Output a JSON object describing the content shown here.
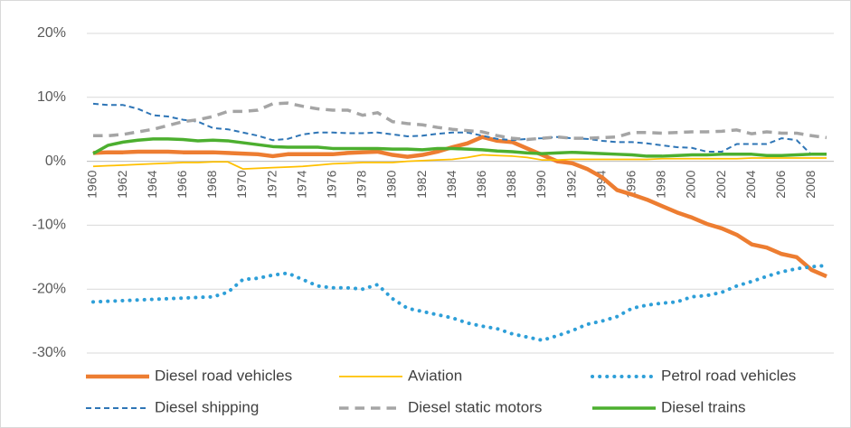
{
  "chart_data": {
    "type": "line",
    "categories": [
      "1960",
      null,
      "1962",
      null,
      "1964",
      null,
      "1966",
      null,
      "1968",
      null,
      "1970",
      null,
      "1972",
      null,
      "1974",
      null,
      "1976",
      null,
      "1978",
      null,
      "1980",
      null,
      "1982",
      null,
      "1984",
      null,
      "1986",
      null,
      "1988",
      null,
      "1990",
      null,
      "1992",
      null,
      "1994",
      null,
      "1996",
      null,
      "1998",
      null,
      "2000",
      null,
      "2002",
      null,
      "2004",
      null,
      "2006",
      null,
      "2008",
      null
    ],
    "ylim": [
      -30,
      20
    ],
    "yticks": [
      {
        "value": -30,
        "label": "-30%"
      },
      {
        "value": -20,
        "label": "-20%"
      },
      {
        "value": -10,
        "label": "-10%"
      },
      {
        "value": 0,
        "label": "0%"
      },
      {
        "value": 10,
        "label": "10%"
      },
      {
        "value": 20,
        "label": "20%"
      }
    ],
    "grid": true,
    "legend": "bottom",
    "series": [
      {
        "name": "Diesel road vehicles",
        "color": "#ed7d31",
        "dash": "solid",
        "line_width": 4.5,
        "values": [
          1.3,
          1.4,
          1.4,
          1.5,
          1.5,
          1.5,
          1.4,
          1.4,
          1.4,
          1.3,
          1.2,
          1.1,
          0.8,
          1.1,
          1.1,
          1.1,
          1.1,
          1.3,
          1.4,
          1.5,
          1.0,
          0.7,
          1.0,
          1.5,
          2.2,
          2.8,
          3.8,
          3.2,
          3.0,
          2.0,
          1.0,
          0,
          -0.3,
          -1.2,
          -2.5,
          -4.5,
          -5.2,
          -6,
          -7,
          -8,
          -8.8,
          -9.8,
          -10.5,
          -11.5,
          -13,
          -13.5,
          -14.5,
          -15,
          -17,
          -18
        ]
      },
      {
        "name": "Aviation",
        "color": "#ffc000",
        "dash": "solid",
        "line_width": 1.75,
        "values": [
          -0.8,
          -0.7,
          -0.6,
          -0.5,
          -0.4,
          -0.3,
          -0.2,
          -0.2,
          -0.1,
          -0.1,
          -1.2,
          -1.1,
          -1.0,
          -0.9,
          -0.8,
          -0.6,
          -0.4,
          -0.3,
          -0.2,
          -0.2,
          -0.2,
          0,
          0.1,
          0.2,
          0.3,
          0.6,
          1.0,
          0.9,
          0.8,
          0.6,
          0.2,
          0.2,
          0.3,
          0.3,
          0.3,
          0.3,
          0.3,
          0.3,
          0.4,
          0.4,
          0.4,
          0.4,
          0.4,
          0.4,
          0.5,
          0.5,
          0.5,
          0.5,
          0.5,
          0.5
        ]
      },
      {
        "name": "Petrol road vehicles",
        "color": "#2e9fd8",
        "dash": "dot",
        "line_width": 4,
        "values": [
          -22,
          -21.9,
          -21.8,
          -21.7,
          -21.6,
          -21.5,
          -21.4,
          -21.3,
          -21.2,
          -20.5,
          -18.5,
          -18.3,
          -17.8,
          -17.5,
          -18.5,
          -19.5,
          -19.8,
          -19.8,
          -20,
          -19.3,
          -21.5,
          -23,
          -23.5,
          -24,
          -24.5,
          -25.3,
          -25.8,
          -26.2,
          -27,
          -27.5,
          -28,
          -27.3,
          -26.5,
          -25.5,
          -25,
          -24.3,
          -23,
          -22.5,
          -22.2,
          -22,
          -21.2,
          -21,
          -20.5,
          -19.5,
          -18.8,
          -18,
          -17.3,
          -16.8,
          -16.5,
          -16.3
        ]
      },
      {
        "name": "Diesel shipping",
        "color": "#2e75b6",
        "dash": "dash",
        "line_width": 2,
        "values": [
          9,
          8.8,
          8.8,
          8.2,
          7.2,
          7,
          6.5,
          6.2,
          5.2,
          5,
          4.5,
          4,
          3.3,
          3.5,
          4.2,
          4.5,
          4.5,
          4.4,
          4.4,
          4.5,
          4.2,
          3.9,
          4,
          4.3,
          4.5,
          4.5,
          4,
          3.5,
          3.3,
          3.5,
          3.6,
          3.8,
          3.6,
          3.5,
          3.2,
          3,
          3,
          2.8,
          2.5,
          2.2,
          2.1,
          1.5,
          1.5,
          2.7,
          2.7,
          2.7,
          3.6,
          3.3,
          1,
          1
        ]
      },
      {
        "name": "Diesel static motors",
        "color": "#a5a5a5",
        "dash": "dash",
        "line_width": 3.5,
        "values": [
          4,
          4,
          4.2,
          4.6,
          5,
          5.6,
          6.2,
          6.5,
          7,
          7.8,
          7.8,
          8,
          9,
          9.1,
          8.6,
          8.2,
          8,
          8,
          7.2,
          7.6,
          6.2,
          5.9,
          5.7,
          5.3,
          5,
          4.8,
          4.6,
          4,
          3.6,
          3.4,
          3.6,
          3.8,
          3.6,
          3.6,
          3.7,
          3.8,
          4.5,
          4.5,
          4.4,
          4.5,
          4.6,
          4.6,
          4.7,
          4.9,
          4.3,
          4.6,
          4.4,
          4.4,
          4,
          3.7
        ]
      },
      {
        "name": "Diesel trains",
        "color": "#4caf2f",
        "dash": "solid",
        "line_width": 3.5,
        "values": [
          1.2,
          2.5,
          3,
          3.3,
          3.5,
          3.5,
          3.4,
          3.2,
          3.3,
          3.2,
          2.9,
          2.6,
          2.3,
          2.2,
          2.2,
          2.2,
          2,
          2,
          2,
          2,
          1.9,
          1.9,
          1.8,
          2,
          2,
          1.9,
          1.8,
          1.6,
          1.5,
          1.3,
          1.2,
          1.3,
          1.4,
          1.3,
          1.2,
          1.1,
          1,
          0.8,
          0.8,
          0.9,
          1,
          1,
          1.1,
          1.1,
          1.1,
          0.9,
          0.9,
          1,
          1.1,
          1.1
        ]
      }
    ]
  }
}
